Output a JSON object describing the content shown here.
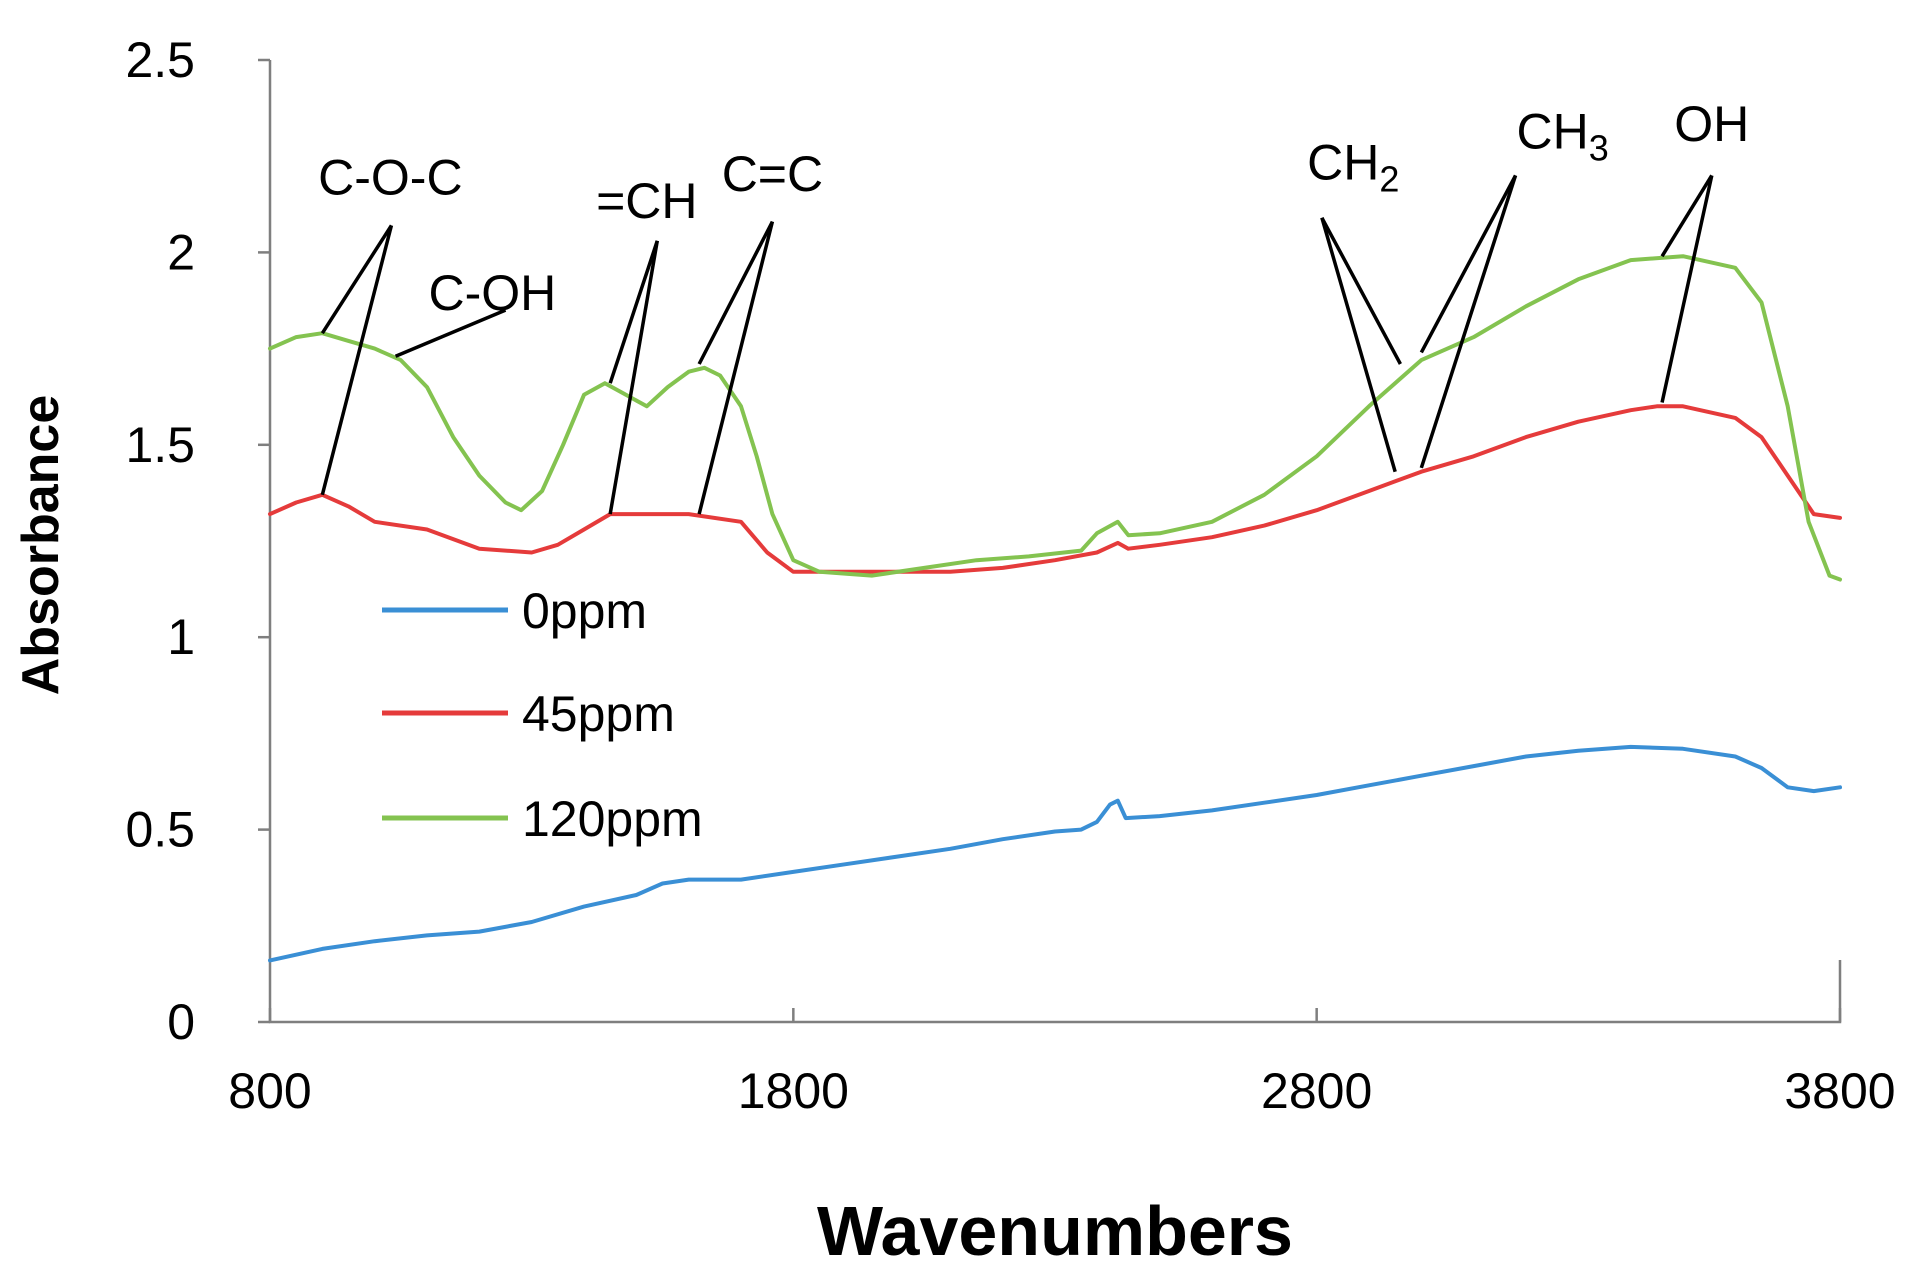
{
  "chart_data": {
    "type": "line",
    "title": "",
    "xlabel": "Wavenumbers",
    "ylabel": "Absorbance",
    "xlim": [
      800,
      3800
    ],
    "ylim": [
      0,
      2.5
    ],
    "x_ticks": [
      "800",
      "1800",
      "2800",
      "3800"
    ],
    "y_ticks": [
      "0",
      "0.5",
      "1",
      "1.5",
      "2",
      "2.5"
    ],
    "grid": false,
    "legend_position": "center-left",
    "series": [
      {
        "name": "0ppm",
        "color": "#3a8fd5",
        "points": [
          [
            800,
            0.16
          ],
          [
            900,
            0.19
          ],
          [
            1000,
            0.21
          ],
          [
            1100,
            0.225
          ],
          [
            1200,
            0.235
          ],
          [
            1300,
            0.26
          ],
          [
            1400,
            0.3
          ],
          [
            1500,
            0.33
          ],
          [
            1550,
            0.36
          ],
          [
            1600,
            0.37
          ],
          [
            1700,
            0.37
          ],
          [
            1800,
            0.39
          ],
          [
            1900,
            0.41
          ],
          [
            2000,
            0.43
          ],
          [
            2100,
            0.45
          ],
          [
            2200,
            0.475
          ],
          [
            2300,
            0.495
          ],
          [
            2350,
            0.5
          ],
          [
            2380,
            0.52
          ],
          [
            2405,
            0.565
          ],
          [
            2420,
            0.575
          ],
          [
            2435,
            0.53
          ],
          [
            2500,
            0.535
          ],
          [
            2600,
            0.55
          ],
          [
            2700,
            0.57
          ],
          [
            2800,
            0.59
          ],
          [
            2900,
            0.615
          ],
          [
            3000,
            0.64
          ],
          [
            3100,
            0.665
          ],
          [
            3200,
            0.69
          ],
          [
            3300,
            0.705
          ],
          [
            3400,
            0.715
          ],
          [
            3500,
            0.71
          ],
          [
            3600,
            0.69
          ],
          [
            3650,
            0.66
          ],
          [
            3700,
            0.61
          ],
          [
            3750,
            0.6
          ],
          [
            3800,
            0.61
          ]
        ]
      },
      {
        "name": "45ppm",
        "color": "#e53b3b",
        "points": [
          [
            800,
            1.32
          ],
          [
            850,
            1.35
          ],
          [
            900,
            1.37
          ],
          [
            950,
            1.34
          ],
          [
            1000,
            1.3
          ],
          [
            1100,
            1.28
          ],
          [
            1200,
            1.23
          ],
          [
            1300,
            1.22
          ],
          [
            1350,
            1.24
          ],
          [
            1400,
            1.28
          ],
          [
            1450,
            1.32
          ],
          [
            1500,
            1.32
          ],
          [
            1600,
            1.32
          ],
          [
            1700,
            1.3
          ],
          [
            1750,
            1.22
          ],
          [
            1800,
            1.17
          ],
          [
            1900,
            1.17
          ],
          [
            2000,
            1.17
          ],
          [
            2100,
            1.17
          ],
          [
            2200,
            1.18
          ],
          [
            2300,
            1.2
          ],
          [
            2380,
            1.22
          ],
          [
            2420,
            1.245
          ],
          [
            2440,
            1.23
          ],
          [
            2500,
            1.24
          ],
          [
            2600,
            1.26
          ],
          [
            2700,
            1.29
          ],
          [
            2800,
            1.33
          ],
          [
            2900,
            1.38
          ],
          [
            3000,
            1.43
          ],
          [
            3100,
            1.47
          ],
          [
            3200,
            1.52
          ],
          [
            3300,
            1.56
          ],
          [
            3400,
            1.59
          ],
          [
            3450,
            1.6
          ],
          [
            3500,
            1.6
          ],
          [
            3600,
            1.57
          ],
          [
            3650,
            1.52
          ],
          [
            3700,
            1.42
          ],
          [
            3750,
            1.32
          ],
          [
            3800,
            1.31
          ]
        ]
      },
      {
        "name": "120ppm",
        "color": "#84c350",
        "points": [
          [
            800,
            1.75
          ],
          [
            850,
            1.78
          ],
          [
            900,
            1.79
          ],
          [
            950,
            1.77
          ],
          [
            1000,
            1.75
          ],
          [
            1050,
            1.72
          ],
          [
            1100,
            1.65
          ],
          [
            1150,
            1.52
          ],
          [
            1200,
            1.42
          ],
          [
            1250,
            1.35
          ],
          [
            1280,
            1.33
          ],
          [
            1320,
            1.38
          ],
          [
            1360,
            1.5
          ],
          [
            1400,
            1.63
          ],
          [
            1440,
            1.66
          ],
          [
            1480,
            1.63
          ],
          [
            1520,
            1.6
          ],
          [
            1560,
            1.65
          ],
          [
            1600,
            1.69
          ],
          [
            1630,
            1.7
          ],
          [
            1660,
            1.68
          ],
          [
            1700,
            1.6
          ],
          [
            1730,
            1.47
          ],
          [
            1760,
            1.32
          ],
          [
            1800,
            1.2
          ],
          [
            1850,
            1.17
          ],
          [
            1950,
            1.16
          ],
          [
            2050,
            1.18
          ],
          [
            2150,
            1.2
          ],
          [
            2250,
            1.21
          ],
          [
            2350,
            1.225
          ],
          [
            2380,
            1.27
          ],
          [
            2420,
            1.3
          ],
          [
            2440,
            1.265
          ],
          [
            2500,
            1.27
          ],
          [
            2600,
            1.3
          ],
          [
            2700,
            1.37
          ],
          [
            2800,
            1.47
          ],
          [
            2900,
            1.6
          ],
          [
            3000,
            1.72
          ],
          [
            3100,
            1.78
          ],
          [
            3200,
            1.86
          ],
          [
            3300,
            1.93
          ],
          [
            3400,
            1.98
          ],
          [
            3500,
            1.99
          ],
          [
            3600,
            1.96
          ],
          [
            3650,
            1.87
          ],
          [
            3700,
            1.6
          ],
          [
            3740,
            1.3
          ],
          [
            3780,
            1.16
          ],
          [
            3800,
            1.15
          ]
        ]
      }
    ],
    "annotations": [
      {
        "label": "C-O-C",
        "sub": "",
        "tail": "",
        "text_x": 1030,
        "text_y": 2.15,
        "anchor": [
          1032,
          2.07
        ],
        "targets": [
          [
            900,
            1.79
          ],
          [
            900,
            1.37
          ]
        ]
      },
      {
        "label": "C-OH",
        "sub": "",
        "tail": "",
        "text_x": 1225,
        "text_y": 1.85,
        "anchor": [
          1250,
          1.85
        ],
        "targets": [
          [
            1040,
            1.73
          ]
        ]
      },
      {
        "label": "=CH",
        "sub": "",
        "tail": "",
        "text_x": 1520,
        "text_y": 2.09,
        "anchor": [
          1540,
          2.03
        ],
        "targets": [
          [
            1450,
            1.66
          ],
          [
            1450,
            1.32
          ]
        ]
      },
      {
        "label": "C=C",
        "sub": "",
        "tail": "",
        "text_x": 1760,
        "text_y": 2.16,
        "anchor": [
          1760,
          2.08
        ],
        "targets": [
          [
            1620,
            1.71
          ],
          [
            1620,
            1.32
          ]
        ]
      },
      {
        "label": "CH",
        "sub": "2",
        "tail": "",
        "text_x": 2870,
        "text_y": 2.19,
        "anchor": [
          2810,
          2.09
        ],
        "targets": [
          [
            2960,
            1.71
          ],
          [
            2950,
            1.43
          ]
        ]
      },
      {
        "label": "CH",
        "sub": "3",
        "tail": "",
        "text_x": 3270,
        "text_y": 2.27,
        "anchor": [
          3180,
          2.2
        ],
        "targets": [
          [
            3000,
            1.74
          ],
          [
            3000,
            1.44
          ]
        ]
      },
      {
        "label": "OH",
        "sub": "",
        "tail": "",
        "text_x": 3555,
        "text_y": 2.29,
        "anchor": [
          3555,
          2.2
        ],
        "targets": [
          [
            3460,
            1.99
          ],
          [
            3460,
            1.61
          ]
        ]
      }
    ]
  }
}
